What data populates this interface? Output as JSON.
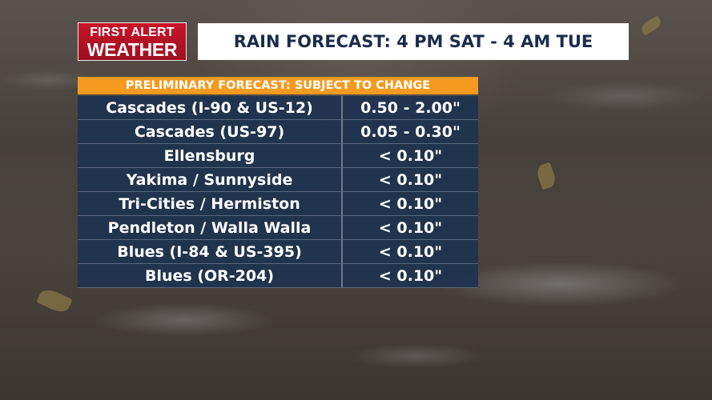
{
  "logo": {
    "line1": "FIRST ALERT",
    "line2": "WEATHER"
  },
  "title": "RAIN FORECAST: 4 PM SAT - 4 AM TUE",
  "disclaimer": "PRELIMINARY FORECAST: SUBJECT TO CHANGE",
  "rows": [
    {
      "location": "Cascades (I-90 & US-12)",
      "amount": "0.50 - 2.00\""
    },
    {
      "location": "Cascades (US-97)",
      "amount": "0.05 - 0.30\""
    },
    {
      "location": "Ellensburg",
      "amount": "< 0.10\""
    },
    {
      "location": "Yakima / Sunnyside",
      "amount": "< 0.10\""
    },
    {
      "location": "Tri-Cities / Hermiston",
      "amount": "< 0.10\""
    },
    {
      "location": "Pendleton / Walla Walla",
      "amount": "< 0.10\""
    },
    {
      "location": "Blues (I-84 & US-395)",
      "amount": "< 0.10\""
    },
    {
      "location": "Blues (OR-204)",
      "amount": "< 0.10\""
    }
  ],
  "colors": {
    "logo_red": "#b5121b",
    "title_text": "#1a2d4a",
    "disclaimer_orange": "#f39a1f",
    "table_navy": "#1f3350"
  }
}
